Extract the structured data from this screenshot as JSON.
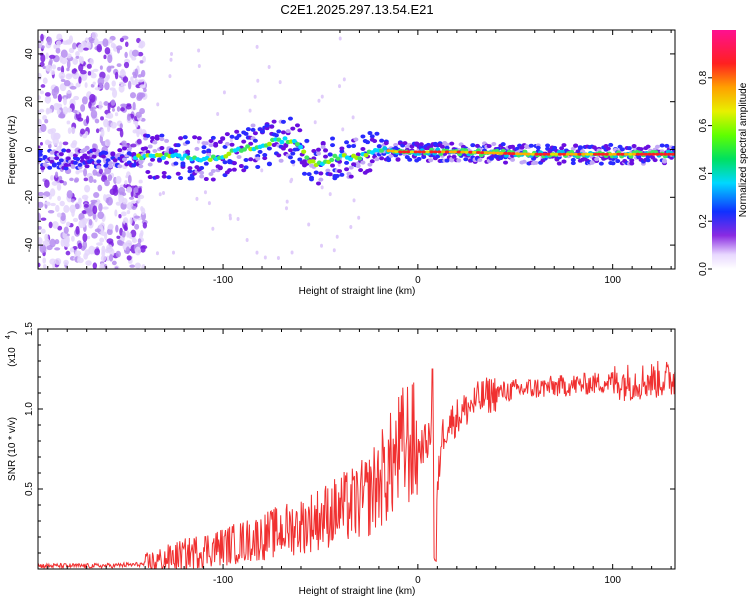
{
  "title": "C2E1.2025.297.13.54.E21",
  "colors": {
    "snr_line": "#f03030",
    "spectrogram_bg": "#ffffff",
    "axis": "#000000"
  },
  "chart_data": [
    {
      "type": "heatmap",
      "title": "C2E1.2025.297.13.54.E21",
      "xlabel": "Height of straight line (km)",
      "ylabel": "Frequency (Hz)",
      "xlim": [
        -195,
        132
      ],
      "ylim": [
        -50,
        50
      ],
      "x_ticks": [
        -100,
        0,
        100
      ],
      "y_ticks": [
        -40,
        -20,
        0,
        20,
        40
      ],
      "x_tick_labels": [
        "-100",
        "0",
        "100"
      ],
      "y_tick_labels": [
        "-40",
        "-20",
        "0",
        "20",
        "40"
      ],
      "colorbar": {
        "label": "Normalized spectral amplitude",
        "range": [
          0,
          1
        ],
        "ticks": [
          0.0,
          0.2,
          0.4,
          0.6,
          0.8
        ],
        "tick_labels": [
          "0.0",
          "0.2",
          "0.4",
          "0.6",
          "0.8"
        ],
        "colormap": "rainbow (white → violet → blue → cyan → green → yellow → red → magenta)"
      },
      "features": [
        {
          "name": "noise region",
          "x_range": [
            -195,
            -140
          ],
          "freq_range": [
            -50,
            48
          ],
          "amplitude": 0.05
        },
        {
          "name": "meteor trace",
          "points": [
            [
              -195,
              -4
            ],
            [
              -170,
              -4
            ],
            [
              -140,
              -3
            ],
            [
              -120,
              -3
            ],
            [
              -105,
              -4
            ],
            [
              -95,
              -1
            ],
            [
              -85,
              1
            ],
            [
              -75,
              3
            ],
            [
              -65,
              4
            ],
            [
              -60,
              1
            ],
            [
              -55,
              -5
            ],
            [
              -50,
              -6
            ],
            [
              -45,
              -4
            ],
            [
              -38,
              -3
            ],
            [
              -30,
              -3
            ],
            [
              -20,
              0
            ],
            [
              -10,
              -1
            ],
            [
              0,
              -1
            ],
            [
              20,
              -1
            ],
            [
              60,
              -2
            ],
            [
              132,
              -2
            ]
          ],
          "amplitude_peak": 0.95
        }
      ]
    },
    {
      "type": "line",
      "xlabel": "Height of straight line (km)",
      "ylabel": "SNR (10 * v/v)",
      "y_exponent_label": "(x10",
      "y_exponent_power": "4",
      "xlim": [
        -195,
        132
      ],
      "ylim": [
        0,
        1.5
      ],
      "x_ticks": [
        -100,
        0,
        100
      ],
      "y_ticks": [
        0.5,
        1.0,
        1.5
      ],
      "x_tick_labels": [
        "-100",
        "0",
        "100"
      ],
      "y_tick_labels": [
        "0.5",
        "1.0",
        "1.5"
      ],
      "units_scale": "x10^4",
      "series": [
        {
          "name": "SNR",
          "x": [
            -195,
            -180,
            -160,
            -140,
            -130,
            -120,
            -110,
            -100,
            -90,
            -80,
            -70,
            -60,
            -50,
            -40,
            -30,
            -25,
            -20,
            -15,
            -10,
            -5,
            0,
            5,
            8,
            9,
            10,
            12,
            15,
            20,
            25,
            30,
            35,
            40,
            50,
            60,
            70,
            80,
            90,
            100,
            110,
            120,
            132
          ],
          "values": [
            0.02,
            0.02,
            0.02,
            0.03,
            0.06,
            0.09,
            0.12,
            0.14,
            0.17,
            0.2,
            0.24,
            0.27,
            0.32,
            0.37,
            0.42,
            0.46,
            0.55,
            0.62,
            0.72,
            0.8,
            0.75,
            0.8,
            0.85,
            0.05,
            0.45,
            0.82,
            0.9,
            0.95,
            1.0,
            1.05,
            1.08,
            1.1,
            1.12,
            1.13,
            1.14,
            1.15,
            1.16,
            1.17,
            1.17,
            1.18,
            1.19
          ]
        }
      ]
    }
  ]
}
